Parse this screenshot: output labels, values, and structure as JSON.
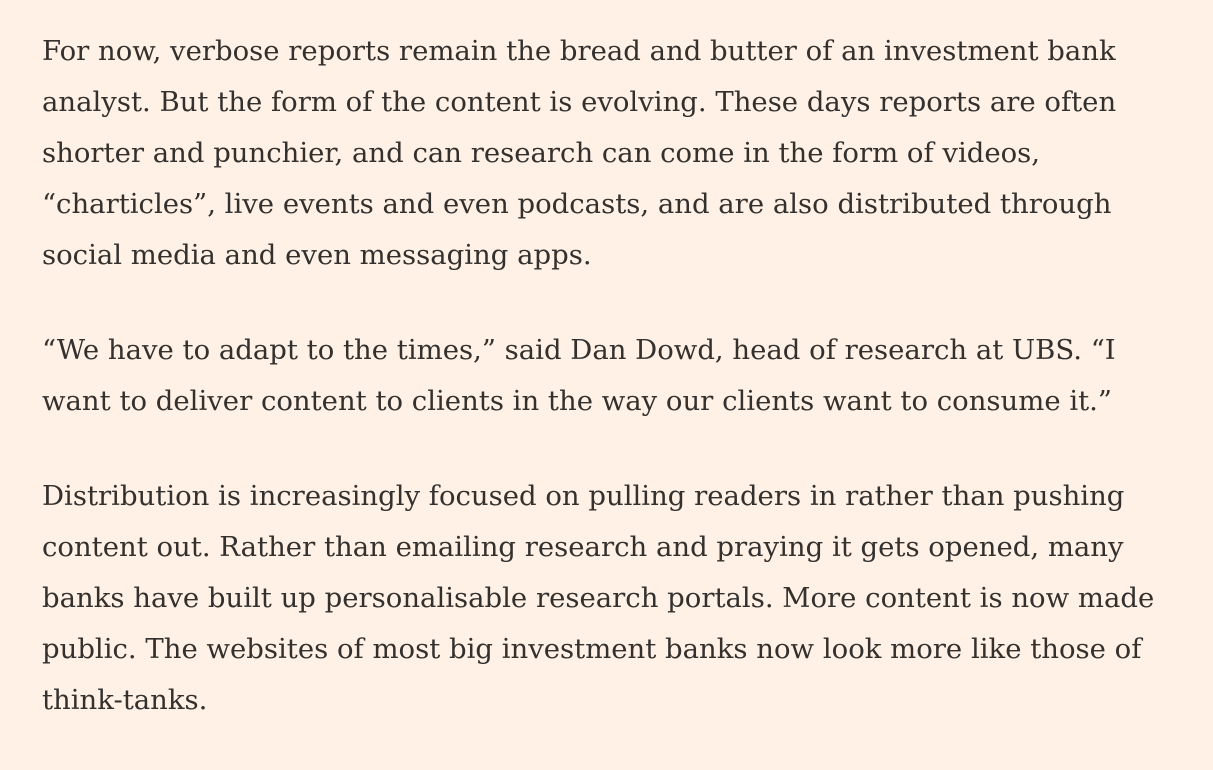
{
  "article": {
    "paragraphs": [
      {
        "lines": [
          "For now, verbose reports remain the bread and butter of an investment bank",
          "analyst. But the form of the content is evolving. These days reports are often",
          "shorter and punchier, and can research can come in the form of videos,",
          "“charticles”, live events and even podcasts, and are also distributed through",
          "social media and even messaging apps."
        ]
      },
      {
        "lines": [
          "“We have to adapt to the times,” said Dan Dowd, head of research at UBS. “I",
          "want to deliver content to clients in the way our clients want to consume it.”"
        ]
      },
      {
        "lines": [
          "Distribution is increasingly focused on pulling readers in rather than pushing",
          "content out. Rather than emailing research and praying it gets opened, many",
          "banks have built up personalisable research portals. More content is now made",
          "public. The websites of most big investment banks now look more like those of",
          "think-tanks."
        ]
      }
    ]
  }
}
